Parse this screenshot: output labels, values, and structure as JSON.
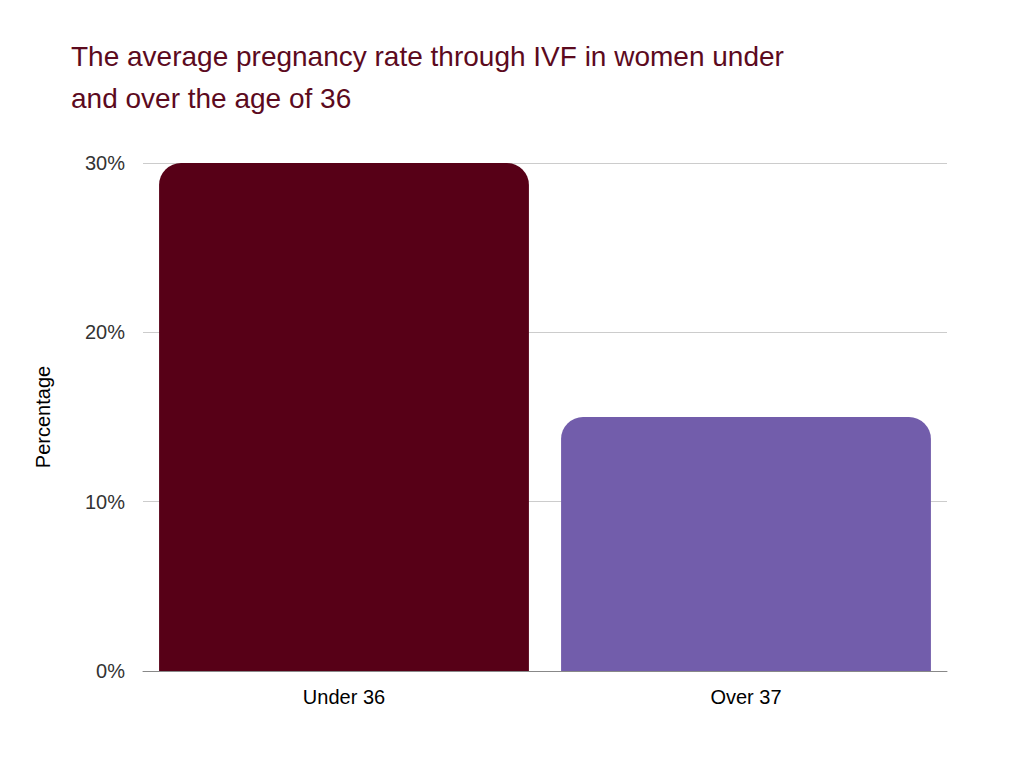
{
  "chart_data": {
    "type": "bar",
    "title": "The average pregnancy rate through IVF in women under and over the age of 36",
    "y_label": "Percentage",
    "categories": [
      "Under 36",
      "Over 37"
    ],
    "values": [
      30,
      15
    ],
    "colors": [
      "#570017",
      "#725dab"
    ],
    "ylim": [
      0,
      30
    ],
    "yticks": [
      {
        "value": 0,
        "label": "0%"
      },
      {
        "value": 10,
        "label": "10%"
      },
      {
        "value": 20,
        "label": "20%"
      },
      {
        "value": 30,
        "label": "30%"
      }
    ],
    "grid": true
  }
}
